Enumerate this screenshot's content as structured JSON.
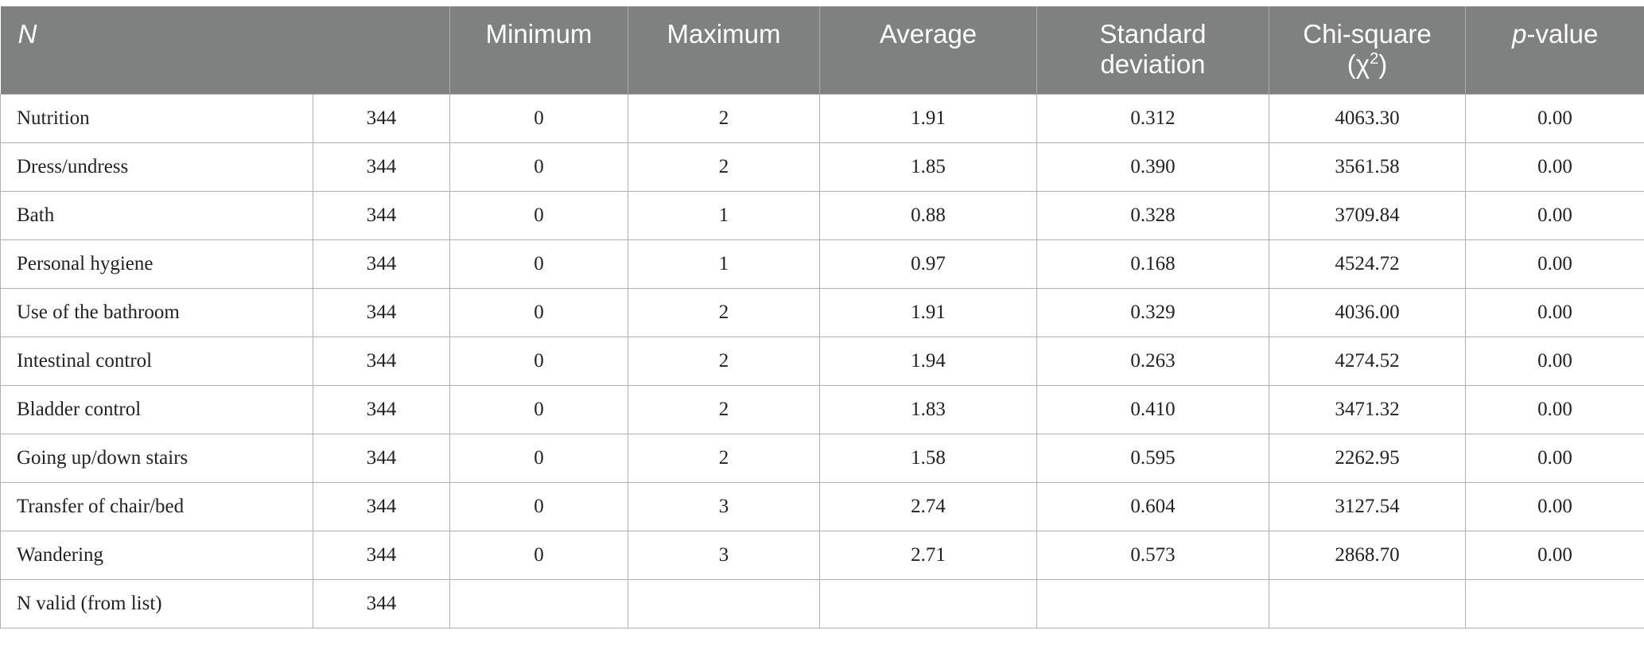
{
  "header": {
    "col0": "N",
    "col1": "",
    "col2": "Minimum",
    "col3": "Maximum",
    "col4": "Average",
    "col5_line1": "Standard",
    "col5_line2": "deviation",
    "col6_line1": "Chi-square",
    "col6_line2_open": "(χ",
    "col6_sup": "2",
    "col6_line2_close": ")",
    "col7_italic": "p",
    "col7_rest": "-value"
  },
  "rows": [
    {
      "label": "Nutrition",
      "n": "344",
      "min": "0",
      "max": "2",
      "avg": "1.91",
      "sd": "0.312",
      "chi": "4063.30",
      "p": "0.00"
    },
    {
      "label": "Dress/undress",
      "n": "344",
      "min": "0",
      "max": "2",
      "avg": "1.85",
      "sd": "0.390",
      "chi": "3561.58",
      "p": "0.00"
    },
    {
      "label": "Bath",
      "n": "344",
      "min": "0",
      "max": "1",
      "avg": "0.88",
      "sd": "0.328",
      "chi": "3709.84",
      "p": "0.00"
    },
    {
      "label": "Personal hygiene",
      "n": "344",
      "min": "0",
      "max": "1",
      "avg": "0.97",
      "sd": "0.168",
      "chi": "4524.72",
      "p": "0.00"
    },
    {
      "label": "Use of the bathroom",
      "n": "344",
      "min": "0",
      "max": "2",
      "avg": "1.91",
      "sd": "0.329",
      "chi": "4036.00",
      "p": "0.00"
    },
    {
      "label": "Intestinal control",
      "n": "344",
      "min": "0",
      "max": "2",
      "avg": "1.94",
      "sd": "0.263",
      "chi": "4274.52",
      "p": "0.00"
    },
    {
      "label": "Bladder control",
      "n": "344",
      "min": "0",
      "max": "2",
      "avg": "1.83",
      "sd": "0.410",
      "chi": "3471.32",
      "p": "0.00"
    },
    {
      "label": "Going up/down stairs",
      "n": "344",
      "min": "0",
      "max": "2",
      "avg": "1.58",
      "sd": "0.595",
      "chi": "2262.95",
      "p": "0.00"
    },
    {
      "label": "Transfer of chair/bed",
      "n": "344",
      "min": "0",
      "max": "3",
      "avg": "2.74",
      "sd": "0.604",
      "chi": "3127.54",
      "p": "0.00"
    },
    {
      "label": "Wandering",
      "n": "344",
      "min": "0",
      "max": "3",
      "avg": "2.71",
      "sd": "0.573",
      "chi": "2868.70",
      "p": "0.00"
    }
  ],
  "footer_row": {
    "label": "N valid (from list)",
    "n": "344"
  }
}
